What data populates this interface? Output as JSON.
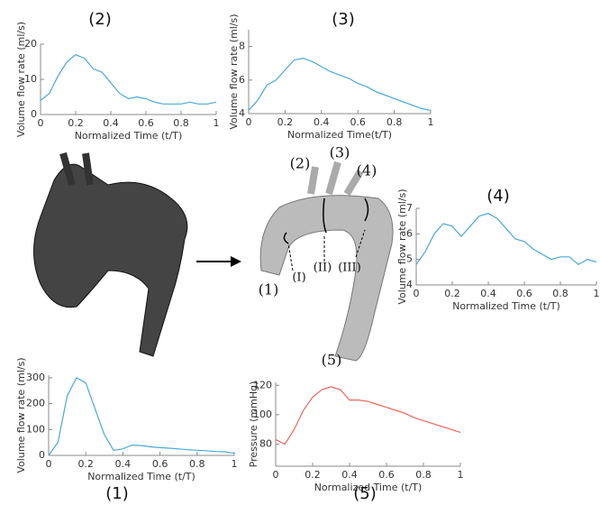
{
  "chart_data": [
    {
      "type": "line",
      "title": "(2)",
      "x_label": "Normalized Time (t/T)",
      "y_label": "Volume flow rate (ml/s)",
      "color": "#4aa8d8",
      "x": [
        0,
        0.05,
        0.1,
        0.15,
        0.2,
        0.25,
        0.3,
        0.35,
        0.4,
        0.45,
        0.5,
        0.55,
        0.6,
        0.65,
        0.7,
        0.75,
        0.8,
        0.85,
        0.9,
        0.95,
        1
      ],
      "values": [
        4,
        6,
        11,
        15,
        17,
        16,
        13,
        12,
        9,
        6,
        4.5,
        5,
        4.5,
        3.5,
        3,
        3,
        3,
        3.5,
        3,
        3,
        3.5
      ],
      "xlim": [
        0,
        1
      ],
      "xticks": [
        0,
        0.2,
        0.4,
        0.6,
        0.8,
        1
      ],
      "ylim": [
        0,
        20
      ],
      "yticks": [
        0,
        10,
        20
      ]
    },
    {
      "type": "line",
      "title": "(3)",
      "x_label": "Normalized Time(t/T)",
      "y_label": "Volume flow rate (ml/s)",
      "color": "#4aa8d8",
      "x": [
        0,
        0.05,
        0.1,
        0.15,
        0.2,
        0.25,
        0.3,
        0.35,
        0.4,
        0.45,
        0.5,
        0.55,
        0.6,
        0.65,
        0.7,
        0.75,
        0.8,
        0.85,
        0.9,
        0.95,
        1
      ],
      "values": [
        4.2,
        4.8,
        5.7,
        6,
        6.6,
        7.2,
        7.3,
        7.1,
        6.8,
        6.5,
        6.3,
        6.1,
        5.8,
        5.6,
        5.3,
        5.1,
        4.9,
        4.7,
        4.5,
        4.3,
        4.2
      ],
      "xlim": [
        0,
        1
      ],
      "xticks": [
        0,
        0.2,
        0.4,
        0.6,
        0.8,
        1
      ],
      "ylim": [
        4,
        9
      ],
      "yticks": [
        4,
        6,
        8
      ]
    },
    {
      "type": "line",
      "title": "(4)",
      "x_label": "Normalized Time (t/T)",
      "y_label": "Volume flow rate (ml/s)",
      "color": "#4aa8d8",
      "x": [
        0,
        0.05,
        0.1,
        0.15,
        0.2,
        0.25,
        0.3,
        0.35,
        0.4,
        0.45,
        0.5,
        0.55,
        0.6,
        0.65,
        0.7,
        0.75,
        0.8,
        0.85,
        0.9,
        0.95,
        1
      ],
      "values": [
        4.8,
        5.3,
        6,
        6.4,
        6.3,
        5.9,
        6.3,
        6.7,
        6.8,
        6.6,
        6.2,
        5.8,
        5.7,
        5.4,
        5.2,
        5,
        5.1,
        5.1,
        4.8,
        5,
        4.9
      ],
      "xlim": [
        0,
        1
      ],
      "xticks": [
        0,
        0.2,
        0.4,
        0.6,
        0.8,
        1
      ],
      "ylim": [
        4,
        7
      ],
      "yticks": [
        4,
        5,
        6,
        7
      ]
    },
    {
      "type": "line",
      "title": "(1)",
      "x_label": "Normalized Time (t/T)",
      "y_label": "Volume flow rate (ml/s)",
      "color": "#4aa8d8",
      "x": [
        0,
        0.05,
        0.1,
        0.15,
        0.2,
        0.25,
        0.3,
        0.35,
        0.4,
        0.45,
        0.5,
        0.55,
        0.6,
        0.65,
        0.7,
        0.75,
        0.8,
        0.85,
        0.9,
        0.95,
        1
      ],
      "values": [
        0,
        50,
        230,
        300,
        280,
        180,
        80,
        20,
        25,
        40,
        38,
        33,
        30,
        28,
        25,
        22,
        20,
        18,
        15,
        14,
        8
      ],
      "xlim": [
        0,
        1
      ],
      "xticks": [
        0,
        0.2,
        0.4,
        0.6,
        0.8,
        1
      ],
      "ylim": [
        0,
        310
      ],
      "yticks": [
        0,
        100,
        200,
        300
      ]
    },
    {
      "type": "line",
      "title": "(5)",
      "x_label": "Normalized Time (t/T)",
      "y_label": "Pressure (mmHg)",
      "color": "#e8675a",
      "x": [
        0,
        0.05,
        0.1,
        0.15,
        0.2,
        0.25,
        0.3,
        0.35,
        0.4,
        0.45,
        0.5,
        0.55,
        0.6,
        0.65,
        0.7,
        0.75,
        0.8,
        0.85,
        0.9,
        0.95,
        1
      ],
      "values": [
        83,
        80,
        90,
        103,
        112,
        117,
        119,
        117,
        110,
        110,
        109,
        107,
        105,
        103,
        101,
        98,
        96,
        94,
        92,
        90,
        88
      ],
      "xlim": [
        0,
        1
      ],
      "xticks": [
        0,
        0.2,
        0.4,
        0.6,
        0.8,
        1
      ],
      "ylim": [
        65,
        122
      ],
      "yticks": [
        80,
        100,
        120
      ]
    }
  ],
  "diagram": {
    "labels": [
      "(1)",
      "(2)",
      "(3)",
      "(4)",
      "(5)",
      "(I)",
      "(II)",
      "(III)"
    ]
  }
}
